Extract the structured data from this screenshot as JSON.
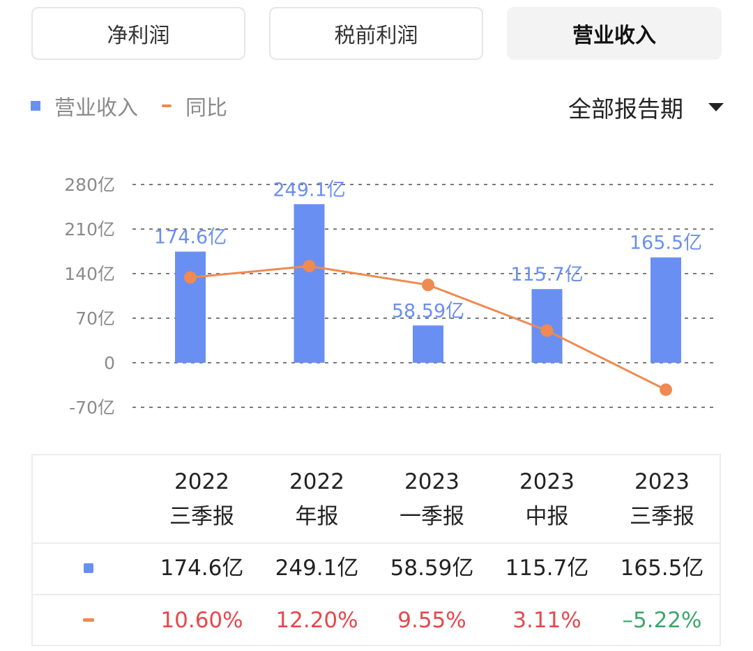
{
  "tabs": [
    {
      "label": "净利润",
      "active": false
    },
    {
      "label": "税前利润",
      "active": false
    },
    {
      "label": "营业收入",
      "active": true
    }
  ],
  "legend": {
    "series1": "营业收入",
    "series2": "同比"
  },
  "period_selector": {
    "label": "全部报告期"
  },
  "colors": {
    "bar": "#6a8ff2",
    "line": "#ee8a52",
    "positive": "#e5484d",
    "negative": "#3aa76d"
  },
  "chart_data": {
    "type": "bar",
    "categories": [
      "2022 三季报",
      "2022 年报",
      "2023 一季报",
      "2023 中报",
      "2023 三季报"
    ],
    "series": [
      {
        "name": "营业收入",
        "type": "bar",
        "unit": "亿",
        "values": [
          174.6,
          249.1,
          58.59,
          115.7,
          165.5
        ],
        "labels": [
          "174.6亿",
          "249.1亿",
          "58.59亿",
          "115.7亿",
          "165.5亿"
        ]
      },
      {
        "name": "同比",
        "type": "line",
        "unit": "%",
        "values": [
          10.6,
          12.2,
          9.55,
          3.11,
          -5.22
        ]
      }
    ],
    "y_ticks": [
      280,
      210,
      140,
      70,
      0,
      -70
    ],
    "y_tick_labels": [
      "280亿",
      "210亿",
      "140亿",
      "70亿",
      "0",
      "-70亿"
    ],
    "ylim": [
      -70,
      280
    ],
    "y2lim": [
      -7.7,
      23.7
    ]
  },
  "table": {
    "headers": [
      {
        "year": "2022",
        "period": "三季报"
      },
      {
        "year": "2022",
        "period": "年报"
      },
      {
        "year": "2023",
        "period": "一季报"
      },
      {
        "year": "2023",
        "period": "中报"
      },
      {
        "year": "2023",
        "period": "三季报"
      }
    ],
    "revenue": [
      "174.6亿",
      "249.1亿",
      "58.59亿",
      "115.7亿",
      "165.5亿"
    ],
    "yoy": [
      "10.60%",
      "12.20%",
      "9.55%",
      "3.11%",
      "–5.22%"
    ]
  }
}
